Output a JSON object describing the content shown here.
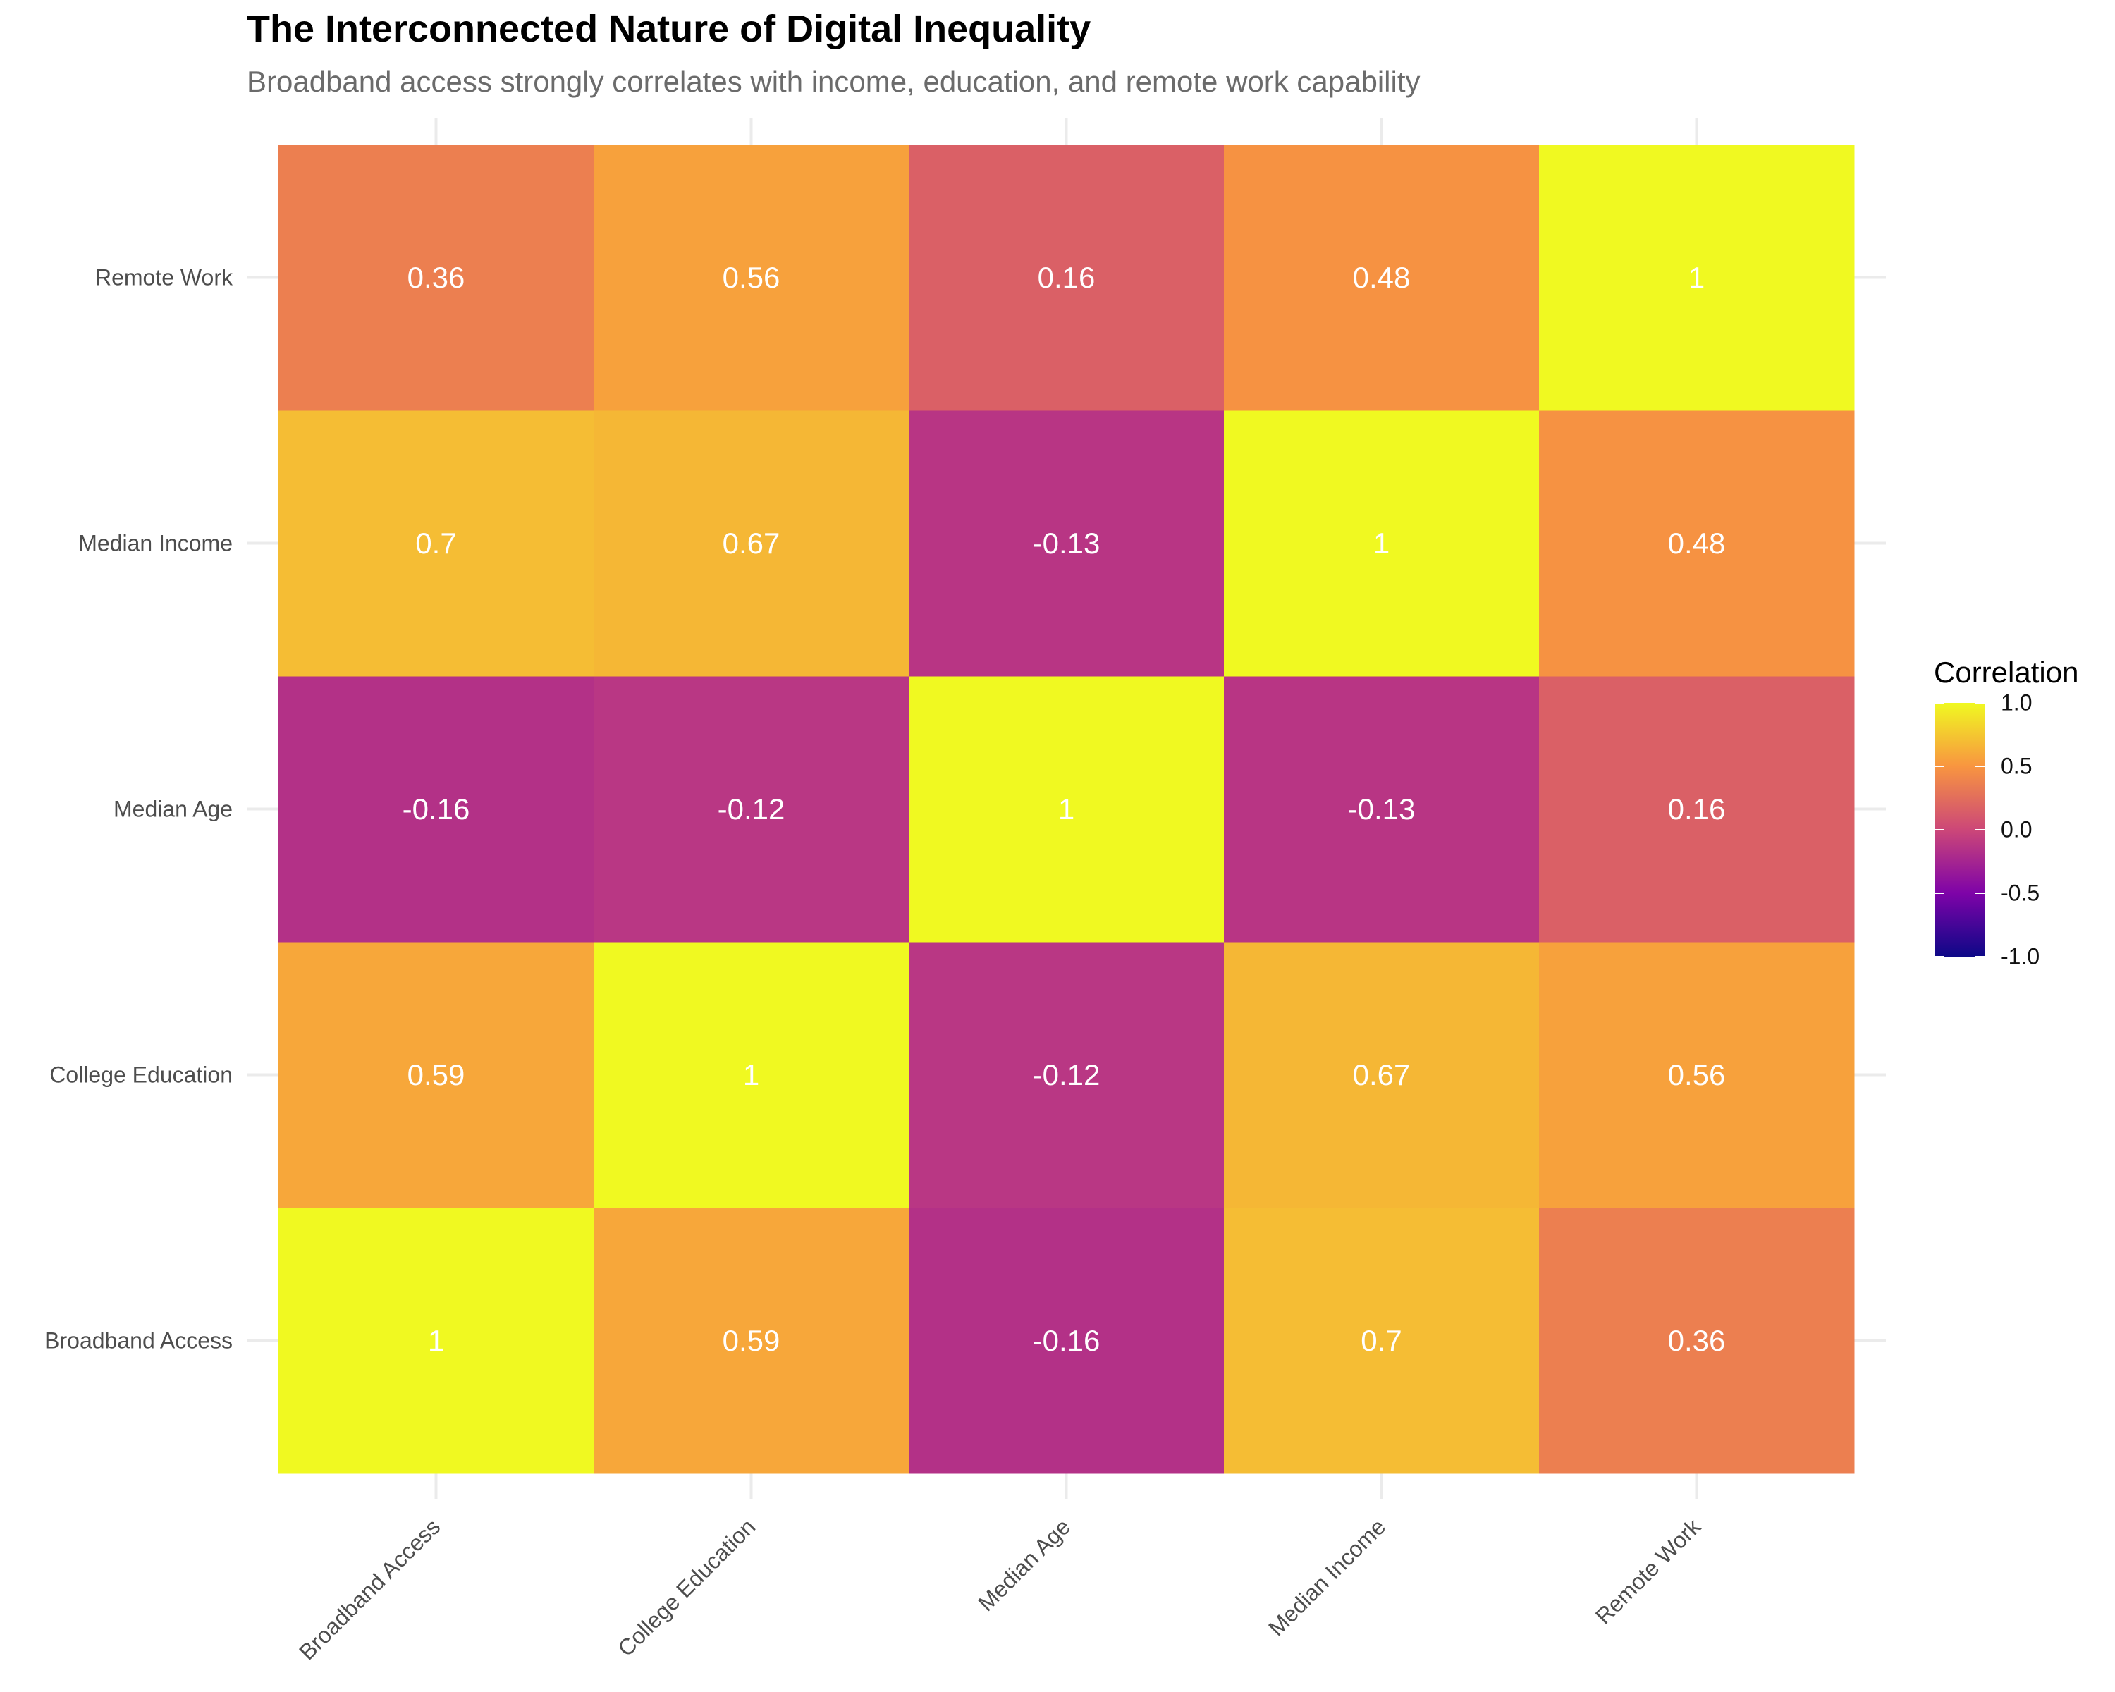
{
  "chart_data": {
    "type": "heatmap",
    "title": "The Interconnected Nature of Digital Inequality",
    "subtitle": "Broadband access strongly correlates with income, education, and remote work capability",
    "x_categories": [
      "Broadband Access",
      "College Education",
      "Median Age",
      "Median Income",
      "Remote Work"
    ],
    "y_categories": [
      "Broadband Access",
      "College Education",
      "Median Age",
      "Median Income",
      "Remote Work"
    ],
    "values": [
      [
        1,
        0.59,
        -0.16,
        0.7,
        0.36
      ],
      [
        0.59,
        1,
        -0.12,
        0.67,
        0.56
      ],
      [
        -0.16,
        -0.12,
        1,
        -0.13,
        0.16
      ],
      [
        0.7,
        0.67,
        -0.13,
        1,
        0.48
      ],
      [
        0.36,
        0.56,
        0.16,
        0.48,
        1
      ]
    ],
    "legend": {
      "title": "Correlation",
      "range": [
        -1,
        1
      ],
      "ticks": [
        "1.0",
        "0.5",
        "0.0",
        "-0.5",
        "-1.0"
      ],
      "placement": "right",
      "colors": [
        "#0d0887",
        "#7e03a8",
        "#cc4778",
        "#f89540",
        "#f0f921"
      ]
    },
    "cell_label_color": "#ffffff",
    "grid": true
  }
}
